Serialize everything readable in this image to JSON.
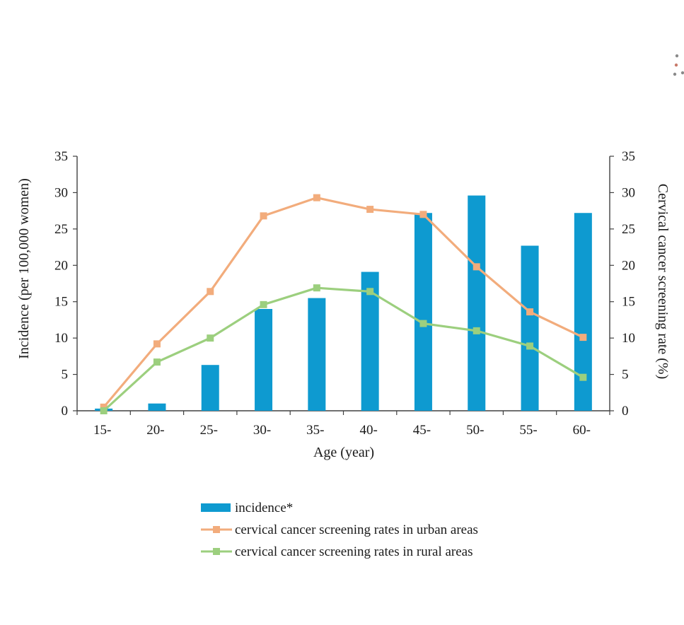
{
  "chart_data": {
    "type": "bar",
    "categories": [
      "15-",
      "20-",
      "25-",
      "30-",
      "35-",
      "40-",
      "45-",
      "50-",
      "55-",
      "60-"
    ],
    "xlabel": "Age (year)",
    "ylabel": "Incidence (per 100,000 women)",
    "y2label": "Cervical cancer screening rate (%)",
    "ylim": [
      0,
      35
    ],
    "y2lim": [
      0,
      35
    ],
    "yticks": [
      "0",
      "5",
      "10",
      "15",
      "20",
      "25",
      "30",
      "35"
    ],
    "y2ticks": [
      "0",
      "5",
      "10",
      "15",
      "20",
      "25",
      "30",
      "35"
    ],
    "grid": false,
    "legend_position": "bottom",
    "series": [
      {
        "name": "incidence*",
        "type": "bar",
        "axis": "left",
        "color": "#0e9ad0",
        "values": [
          0.3,
          1.0,
          6.3,
          14.0,
          15.5,
          19.1,
          27.2,
          29.6,
          22.7,
          27.2
        ]
      },
      {
        "name": "cervical cancer screening rates in urban areas",
        "type": "line",
        "axis": "right",
        "color": "#f2ac7c",
        "values": [
          0.5,
          9.2,
          16.4,
          26.8,
          29.3,
          27.7,
          27.0,
          19.8,
          13.6,
          10.1
        ]
      },
      {
        "name": "cervical cancer screening rates in rural areas",
        "type": "line",
        "axis": "right",
        "color": "#9ccf7e",
        "values": [
          0.0,
          6.7,
          10.0,
          14.6,
          16.9,
          16.4,
          12.0,
          11.0,
          8.9,
          4.6
        ]
      }
    ]
  }
}
